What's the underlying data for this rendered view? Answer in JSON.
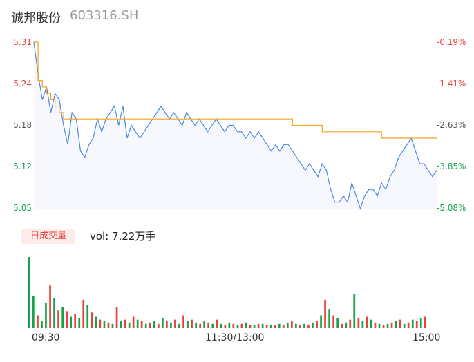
{
  "header": {
    "name": "诚邦股份",
    "code": "603316.SH"
  },
  "volume_panel": {
    "badge_label": "日成交量",
    "vol_text": "vol: 7.22万手"
  },
  "colors": {
    "up": "#e8433a",
    "down": "#17a34a",
    "price_line": "#4a86e8",
    "avg_line": "#f2a51a",
    "area_fill": "#f6f8fd"
  },
  "chart_data": [
    {
      "type": "line",
      "title": "",
      "y_ticks": [
        "5.31",
        "5.24",
        "5.18",
        "5.12",
        "5.05"
      ],
      "y_ticks_right": [
        "-0.19%",
        "-1.41%",
        "-2.63%",
        "-3.85%",
        "-5.08%"
      ],
      "x_ticks": [
        "09:30",
        "11:30/13:00",
        "15:00"
      ],
      "ylim": [
        5.05,
        5.31
      ],
      "series": [
        {
          "role": "price",
          "values": [
            5.31,
            5.26,
            5.22,
            5.24,
            5.2,
            5.23,
            5.22,
            5.18,
            5.15,
            5.2,
            5.19,
            5.14,
            5.13,
            5.15,
            5.16,
            5.19,
            5.17,
            5.19,
            5.2,
            5.21,
            5.18,
            5.21,
            5.16,
            5.18,
            5.17,
            5.16,
            5.17,
            5.18,
            5.19,
            5.2,
            5.21,
            5.2,
            5.19,
            5.2,
            5.19,
            5.18,
            5.2,
            5.19,
            5.18,
            5.19,
            5.18,
            5.17,
            5.18,
            5.19,
            5.18,
            5.17,
            5.18,
            5.18,
            5.17,
            5.17,
            5.16,
            5.17,
            5.16,
            5.17,
            5.16,
            5.15,
            5.14,
            5.15,
            5.14,
            5.15,
            5.15,
            5.14,
            5.13,
            5.12,
            5.11,
            5.12,
            5.11,
            5.1,
            5.12,
            5.11,
            5.08,
            5.06,
            5.06,
            5.07,
            5.06,
            5.09,
            5.07,
            5.05,
            5.07,
            5.08,
            5.08,
            5.07,
            5.09,
            5.08,
            5.1,
            5.11,
            5.13,
            5.14,
            5.15,
            5.16,
            5.14,
            5.12,
            5.12,
            5.11,
            5.1,
            5.11
          ]
        },
        {
          "role": "average",
          "values": [
            5.31,
            5.25,
            5.24,
            5.23,
            5.22,
            5.21,
            5.2,
            5.19,
            5.19,
            5.19,
            5.19,
            5.19,
            5.19,
            5.19,
            5.19,
            5.19,
            5.19,
            5.19,
            5.19,
            5.19,
            5.19,
            5.19,
            5.19,
            5.19,
            5.19,
            5.19,
            5.19,
            5.19,
            5.19,
            5.19,
            5.19,
            5.19,
            5.19,
            5.19,
            5.19,
            5.19,
            5.19,
            5.19,
            5.19,
            5.19,
            5.19,
            5.19,
            5.19,
            5.19,
            5.19,
            5.19,
            5.19,
            5.19,
            5.19,
            5.19,
            5.19,
            5.19,
            5.19,
            5.19,
            5.19,
            5.19,
            5.19,
            5.19,
            5.19,
            5.19,
            5.19,
            5.18,
            5.18,
            5.18,
            5.18,
            5.18,
            5.18,
            5.18,
            5.17,
            5.17,
            5.17,
            5.17,
            5.17,
            5.17,
            5.17,
            5.17,
            5.17,
            5.17,
            5.17,
            5.17,
            5.17,
            5.17,
            5.16,
            5.16,
            5.16,
            5.16,
            5.16,
            5.16,
            5.16,
            5.16,
            5.16,
            5.16,
            5.16,
            5.16,
            5.16,
            5.16
          ]
        }
      ]
    },
    {
      "type": "bar",
      "title": "",
      "ylabel": "vol",
      "values": [
        100,
        45,
        18,
        10,
        36,
        60,
        42,
        25,
        30,
        24,
        16,
        20,
        14,
        40,
        32,
        22,
        16,
        12,
        10,
        8,
        6,
        30,
        10,
        12,
        8,
        16,
        12,
        10,
        6,
        8,
        10,
        6,
        14,
        10,
        8,
        12,
        6,
        18,
        10,
        12,
        8,
        6,
        10,
        8,
        6,
        12,
        6,
        5,
        8,
        6,
        4,
        6,
        8,
        5,
        4,
        6,
        6,
        4,
        5,
        4,
        6,
        4,
        8,
        10,
        6,
        4,
        6,
        5,
        8,
        10,
        18,
        40,
        26,
        18,
        14,
        6,
        8,
        12,
        48,
        14,
        10,
        16,
        12,
        8,
        6,
        4,
        6,
        8,
        10,
        12,
        6,
        8,
        12,
        10,
        14,
        16
      ],
      "colors": [
        "down",
        "down",
        "up",
        "down",
        "down",
        "up",
        "down",
        "up",
        "down",
        "up",
        "down",
        "up",
        "down",
        "up",
        "down",
        "up",
        "down",
        "up",
        "down",
        "up",
        "down",
        "up",
        "down",
        "up",
        "down",
        "up",
        "down",
        "up",
        "down",
        "up",
        "down",
        "up",
        "down",
        "up",
        "down",
        "up",
        "down",
        "up",
        "down",
        "up",
        "down",
        "up",
        "down",
        "up",
        "down",
        "up",
        "down",
        "up",
        "down",
        "up",
        "down",
        "up",
        "down",
        "up",
        "down",
        "up",
        "down",
        "up",
        "down",
        "up",
        "down",
        "up",
        "down",
        "up",
        "down",
        "up",
        "down",
        "up",
        "down",
        "up",
        "down",
        "up",
        "down",
        "up",
        "down",
        "up",
        "down",
        "up",
        "down",
        "up",
        "down",
        "up",
        "down",
        "up",
        "down",
        "up",
        "down",
        "up",
        "down",
        "up",
        "down",
        "up",
        "down",
        "up",
        "down",
        "up"
      ]
    }
  ]
}
